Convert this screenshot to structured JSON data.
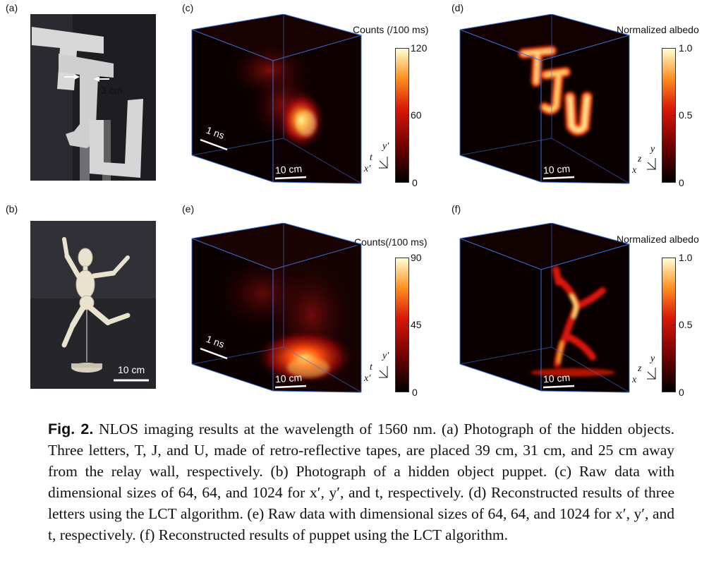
{
  "panels": {
    "a": {
      "label": "(a)",
      "annotation": "3 cm"
    },
    "b": {
      "label": "(b)",
      "scale_label": "10 cm"
    },
    "c": {
      "label": "(c)",
      "colorbar_title": "Counts (/100 ms)",
      "ticks": [
        "120",
        "60",
        "0"
      ],
      "time_scale": "1 ns",
      "space_scale": "10 cm",
      "axes": {
        "vertical": "y′",
        "depth": "t",
        "horizontal": "x′"
      }
    },
    "d": {
      "label": "(d)",
      "colorbar_title": "Normalized albedo",
      "ticks": [
        "1.0",
        "0.5",
        "0"
      ],
      "space_scale": "10 cm",
      "axes": {
        "vertical": "y",
        "depth": "z",
        "horizontal": "x"
      }
    },
    "e": {
      "label": "(e)",
      "colorbar_title": "Counts(/100 ms)",
      "ticks": [
        "90",
        "45",
        "0"
      ],
      "time_scale": "1 ns",
      "space_scale": "10 cm",
      "axes": {
        "vertical": "y′",
        "depth": "t",
        "horizontal": "x′"
      }
    },
    "f": {
      "label": "(f)",
      "colorbar_title": "Normalized albedo",
      "ticks": [
        "1.0",
        "0.5",
        "0"
      ],
      "space_scale": "10 cm",
      "axes": {
        "vertical": "y",
        "depth": "z",
        "horizontal": "x"
      }
    }
  },
  "caption": {
    "fig_label": "Fig. 2.",
    "text": " NLOS imaging results at the wavelength of 1560 nm. (a) Photograph of the hidden objects. Three letters, T, J, and U, made of retro-reflective tapes, are placed 39 cm, 31 cm, and 25 cm away from the relay wall, respectively. (b) Photograph of a hidden object puppet. (c) Raw data with dimensional sizes of 64, 64, and 1024 for x′, y′, and t, respectively. (d) Reconstructed results of three letters using the LCT algorithm. (e) Raw data with dimensional sizes of 64, 64, and 1024 for x′, y′, and t, respectively. (f) Reconstructed results of puppet using the LCT algorithm."
  },
  "colors": {
    "heat_low": "#000000",
    "heat_mid": "#d01010",
    "heat_high": "#ffff90",
    "cube_edge": "#3a6fd8"
  }
}
